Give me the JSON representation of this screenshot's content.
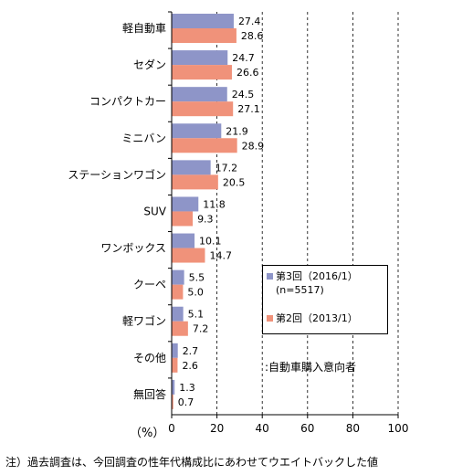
{
  "chart_data": {
    "type": "bar",
    "orientation": "horizontal",
    "categories": [
      "軽自動車",
      "セダン",
      "コンパクトカー",
      "ミニバン",
      "ステーションワゴン",
      "SUV",
      "ワンボックス",
      "クーペ",
      "軽ワゴン",
      "その他",
      "無回答"
    ],
    "series": [
      {
        "name": "第3回（2016/1）",
        "name_sub": "(n=5517)",
        "color": "#8e95c8",
        "values": [
          27.4,
          24.7,
          24.5,
          21.9,
          17.2,
          11.8,
          10.1,
          5.5,
          5.1,
          2.7,
          1.3
        ],
        "labels": [
          "27.4",
          "24.7",
          "24.5",
          "21.9",
          "17.2",
          "11.8",
          "10.1",
          "5.5",
          "5.1",
          "2.7",
          "1.3"
        ]
      },
      {
        "name": "第2回（2013/1）",
        "color": "#f0927a",
        "values": [
          28.6,
          26.6,
          27.1,
          28.9,
          20.5,
          9.3,
          14.7,
          5.0,
          7.2,
          2.6,
          0.7
        ],
        "labels": [
          "28.6",
          "26.6",
          "27.1",
          "28.9",
          "20.5",
          "9.3",
          "14.7",
          "5.0",
          "7.2",
          "2.6",
          "0.7"
        ]
      }
    ],
    "xlim": [
      0,
      100
    ],
    "xticks": [
      "0",
      "20",
      "40",
      "60",
      "80",
      "100"
    ],
    "unit_label": "（%）",
    "grid": "vertical-dashed",
    "legend_position": "right"
  },
  "annotation": ":自動車購入意向者",
  "footnote": "注）過去調査は、今回調査の性年代構成比にあわせてウエイトバックした値"
}
